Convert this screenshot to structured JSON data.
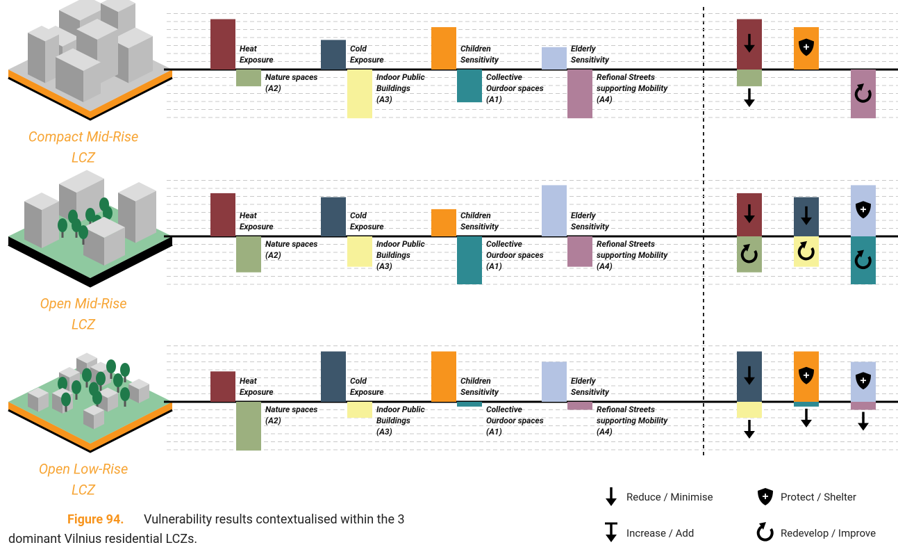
{
  "rows": [
    {
      "title": [
        "Compact Mid-Rise",
        "LCZ"
      ],
      "exposure": [
        6.3,
        3.7,
        5.3,
        2.8
      ],
      "assets": [
        2.1,
        6.1,
        4.1,
        6.1
      ],
      "actions": [
        [
          {
            "value": 6.3,
            "color": "#8b3a3f",
            "icon": "Reduce / Minimise"
          },
          {
            "value": 2.1,
            "color": "#9cb07f",
            "icon": "Reduce / Minimise"
          }
        ],
        [
          {
            "value": 5.3,
            "color": "#f7941d",
            "icon": "Protect / Shelter"
          },
          null
        ],
        [
          null,
          {
            "value": 6.1,
            "color": "#b07f9a",
            "icon": "Redevelop / Improve"
          }
        ]
      ]
    },
    {
      "title": [
        "Open Mid-Rise",
        "LCZ"
      ],
      "exposure": [
        5.4,
        4.9,
        3.4,
        6.4
      ],
      "assets": [
        4.5,
        3.8,
        6.0,
        3.8
      ],
      "actions": [
        [
          {
            "value": 5.4,
            "color": "#8b3a3f",
            "icon": "Reduce / Minimise"
          },
          {
            "value": 4.5,
            "color": "#9cb07f",
            "icon": "Redevelop / Improve"
          }
        ],
        [
          {
            "value": 4.9,
            "color": "#3d566b",
            "icon": "Reduce / Minimise"
          },
          {
            "value": 3.8,
            "color": "#f7f29a",
            "icon": "Redevelop / Improve"
          }
        ],
        [
          {
            "value": 6.4,
            "color": "#b4c3e3",
            "icon": "Protect / Shelter"
          },
          {
            "value": 6.0,
            "color": "#2e8a92",
            "icon": "Redevelop / Improve"
          }
        ]
      ]
    },
    {
      "title": [
        "Open Low-Rise",
        "LCZ"
      ],
      "exposure": [
        3.8,
        6.3,
        6.3,
        5.0
      ],
      "assets": [
        6.1,
        2.0,
        0.6,
        1.0
      ],
      "actions": [
        [
          {
            "value": 6.3,
            "color": "#3d566b",
            "icon": "Reduce / Minimise"
          },
          {
            "value": 2.0,
            "color": "#f7f29a",
            "icon": "Reduce / Minimise"
          }
        ],
        [
          {
            "value": 6.3,
            "color": "#f7941d",
            "icon": "Protect / Shelter"
          },
          {
            "value": 0.6,
            "color": "#2e8a92",
            "icon": "Reduce / Minimise"
          }
        ],
        [
          {
            "value": 5.0,
            "color": "#b4c3e3",
            "icon": "Protect / Shelter"
          },
          {
            "value": 1.0,
            "color": "#b07f9a",
            "icon": "Reduce / Minimise"
          }
        ]
      ]
    }
  ],
  "exposure_indicators": [
    {
      "label": [
        "Heat",
        "Exposure"
      ],
      "color": "#8b3a3f"
    },
    {
      "label": [
        "Cold",
        "Exposure"
      ],
      "color": "#3d566b"
    },
    {
      "label": [
        "Children",
        "Sensitivity"
      ],
      "color": "#f7941d"
    },
    {
      "label": [
        "Elderly",
        "Sensitivity"
      ],
      "color": "#b4c3e3"
    }
  ],
  "asset_indicators": [
    {
      "label": [
        "Nature spaces",
        "(A2)"
      ],
      "color": "#9cb07f"
    },
    {
      "label": [
        "Indoor Public",
        "Buildings",
        "(A3)"
      ],
      "color": "#f7f29a"
    },
    {
      "label": [
        "Collective",
        "Ourdoor spaces",
        "(A1)"
      ],
      "color": "#2e8a92"
    },
    {
      "label": [
        "Refional Streets",
        "supporting Mobility",
        "(A4)"
      ],
      "color": "#b07f9a"
    }
  ],
  "legend": [
    "Reduce / Minimise",
    "Protect / Shelter",
    "Increase / Add",
    "Redevelop / Improve"
  ],
  "caption": {
    "figure": "Figure 94.",
    "text": [
      "Vulnerability results contextualised within the 3",
      "dominant Vilnius residential LCZs."
    ]
  }
}
